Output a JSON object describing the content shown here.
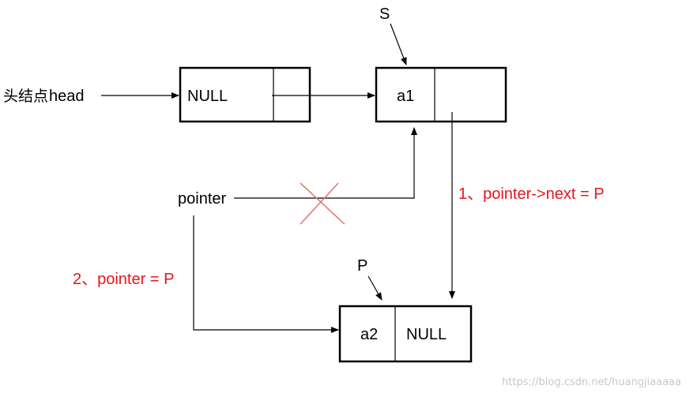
{
  "colors": {
    "line": "#000000",
    "accent": "#e8141c",
    "cross": "#e0736f",
    "watermark": "#c8c8c8"
  },
  "head": {
    "label_cjk": "头结点",
    "label_en": "head"
  },
  "nodes": {
    "head_node": {
      "data": "NULL",
      "next": ""
    },
    "a1": {
      "data": "a1",
      "next": ""
    },
    "a2": {
      "data": "a2",
      "next": "NULL"
    }
  },
  "pointer_labels": {
    "s": "S",
    "p": "P",
    "pointer": "pointer"
  },
  "steps": {
    "step1": "1、pointer->next = P",
    "step2": "2、pointer = P"
  },
  "watermark": "https://blog.csdn.net/huangjiaaaaa"
}
